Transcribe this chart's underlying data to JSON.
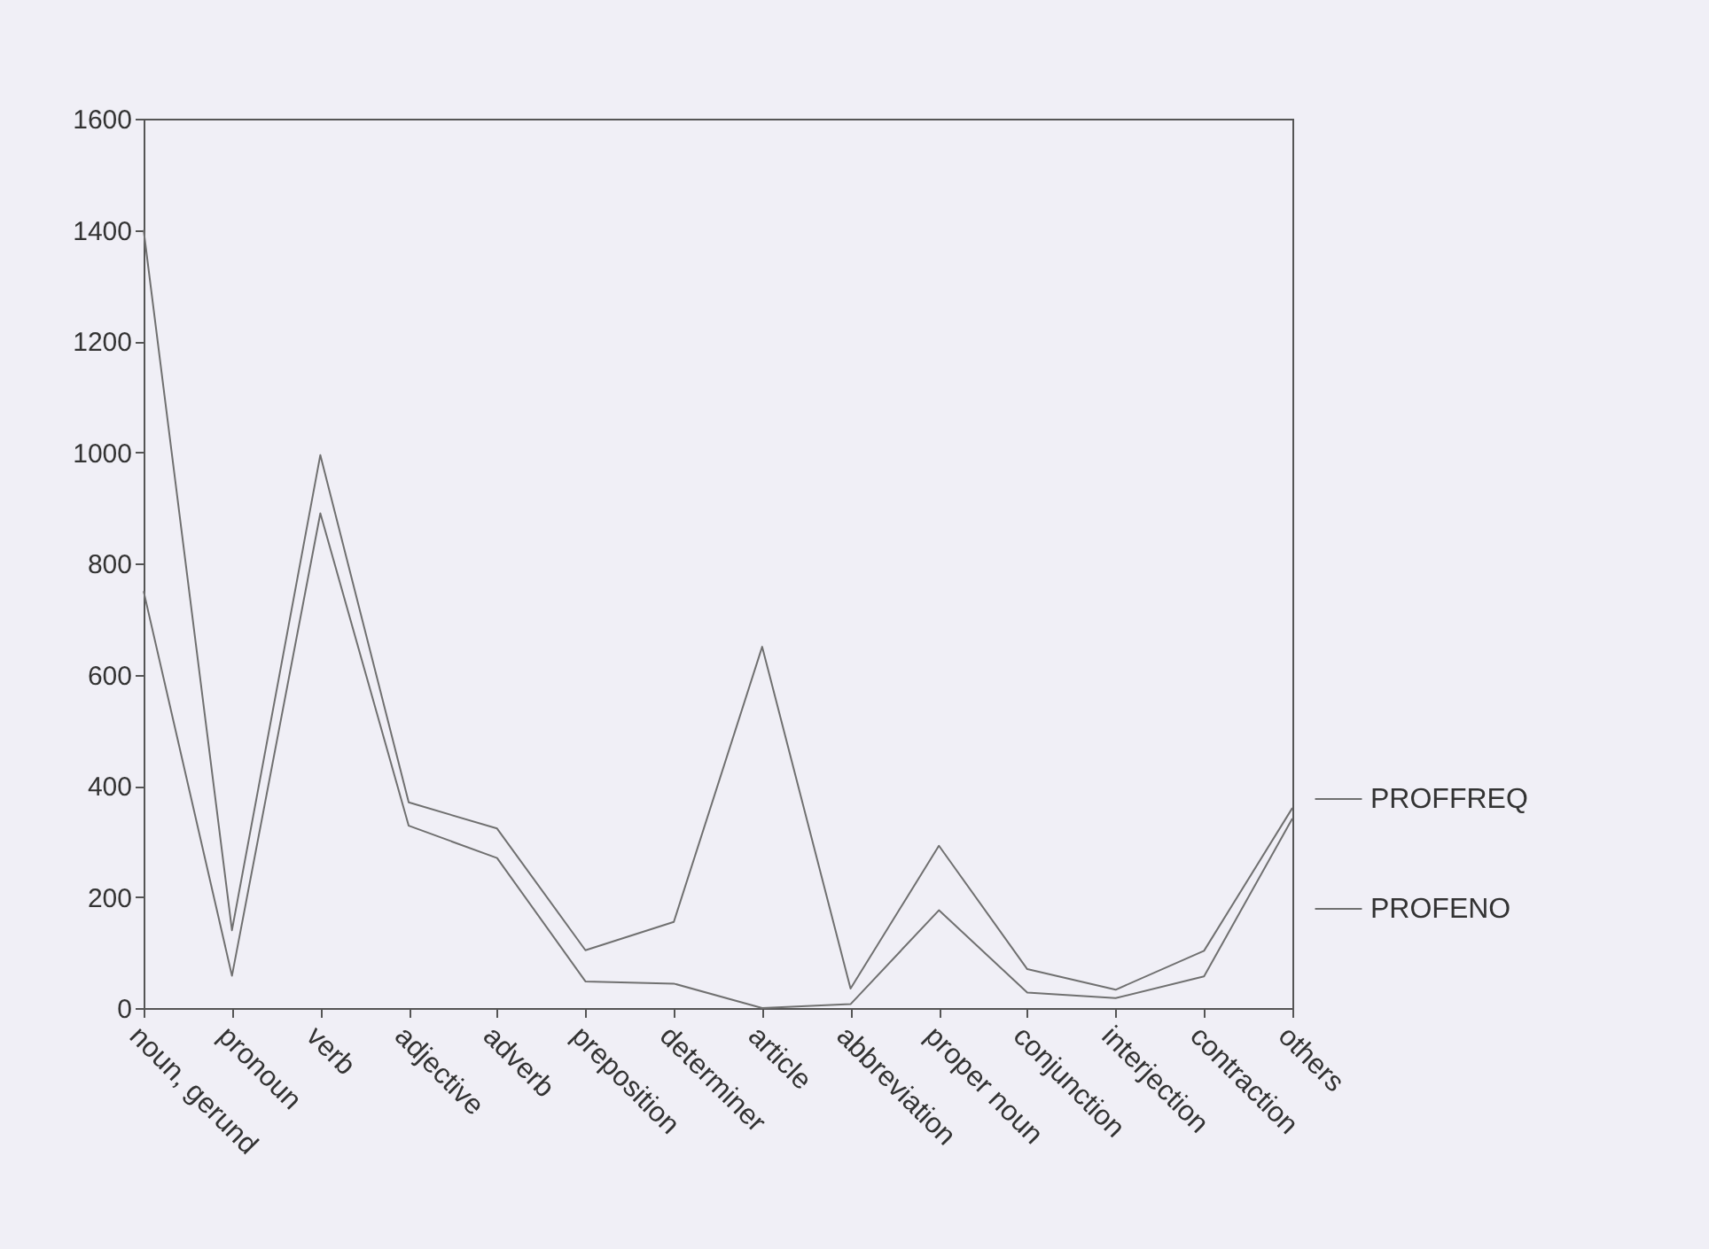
{
  "chart_data": {
    "type": "line",
    "categories": [
      "noun, gerund",
      "pronoun",
      "verb",
      "adjective",
      "adverb",
      "preposition",
      "determiner",
      "article",
      "abbreviation",
      "proper noun",
      "conjunction",
      "interjection",
      "contraction",
      "others"
    ],
    "series": [
      {
        "name": "PROFFREQ",
        "color": "#707070",
        "values": [
          1400,
          140,
          995,
          370,
          323,
          104,
          155,
          650,
          35,
          292,
          70,
          33,
          103,
          360
        ]
      },
      {
        "name": "PROFENO",
        "color": "#707070",
        "values": [
          750,
          58,
          890,
          328,
          270,
          48,
          44,
          0,
          7,
          176,
          28,
          18,
          57,
          341
        ]
      }
    ],
    "ylim": [
      0,
      1600
    ],
    "yticks": [
      0,
      200,
      400,
      600,
      800,
      1000,
      1200,
      1400,
      1600
    ],
    "grid": false,
    "legend": "right",
    "marker": "none",
    "line_style": "solid"
  }
}
